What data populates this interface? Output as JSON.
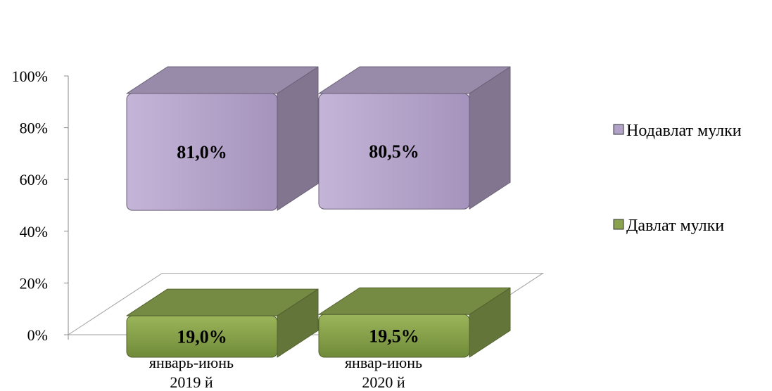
{
  "chart_data": {
    "type": "bar",
    "stacked": true,
    "percent": true,
    "three_d": true,
    "categories": [
      [
        "январь-июнь",
        "2019 й"
      ],
      [
        "январ-июнь",
        "2020 й"
      ]
    ],
    "series": [
      {
        "name": "Давлат мулки",
        "values": [
          19.0,
          19.5
        ],
        "labels": [
          "19,0%",
          "19,5%"
        ],
        "color": "#8aa24e"
      },
      {
        "name": "Нодавлат мулки",
        "values": [
          81.0,
          80.5
        ],
        "labels": [
          "81,0%",
          "80,5%"
        ],
        "color": "#b3a2c7"
      }
    ],
    "y_ticks": [
      "0%",
      "20%",
      "40%",
      "60%",
      "80%",
      "100%"
    ],
    "ylim": [
      0,
      100
    ],
    "legend_position": "right",
    "legend_order": [
      "Нодавлат мулки",
      "Давлат мулки"
    ]
  }
}
